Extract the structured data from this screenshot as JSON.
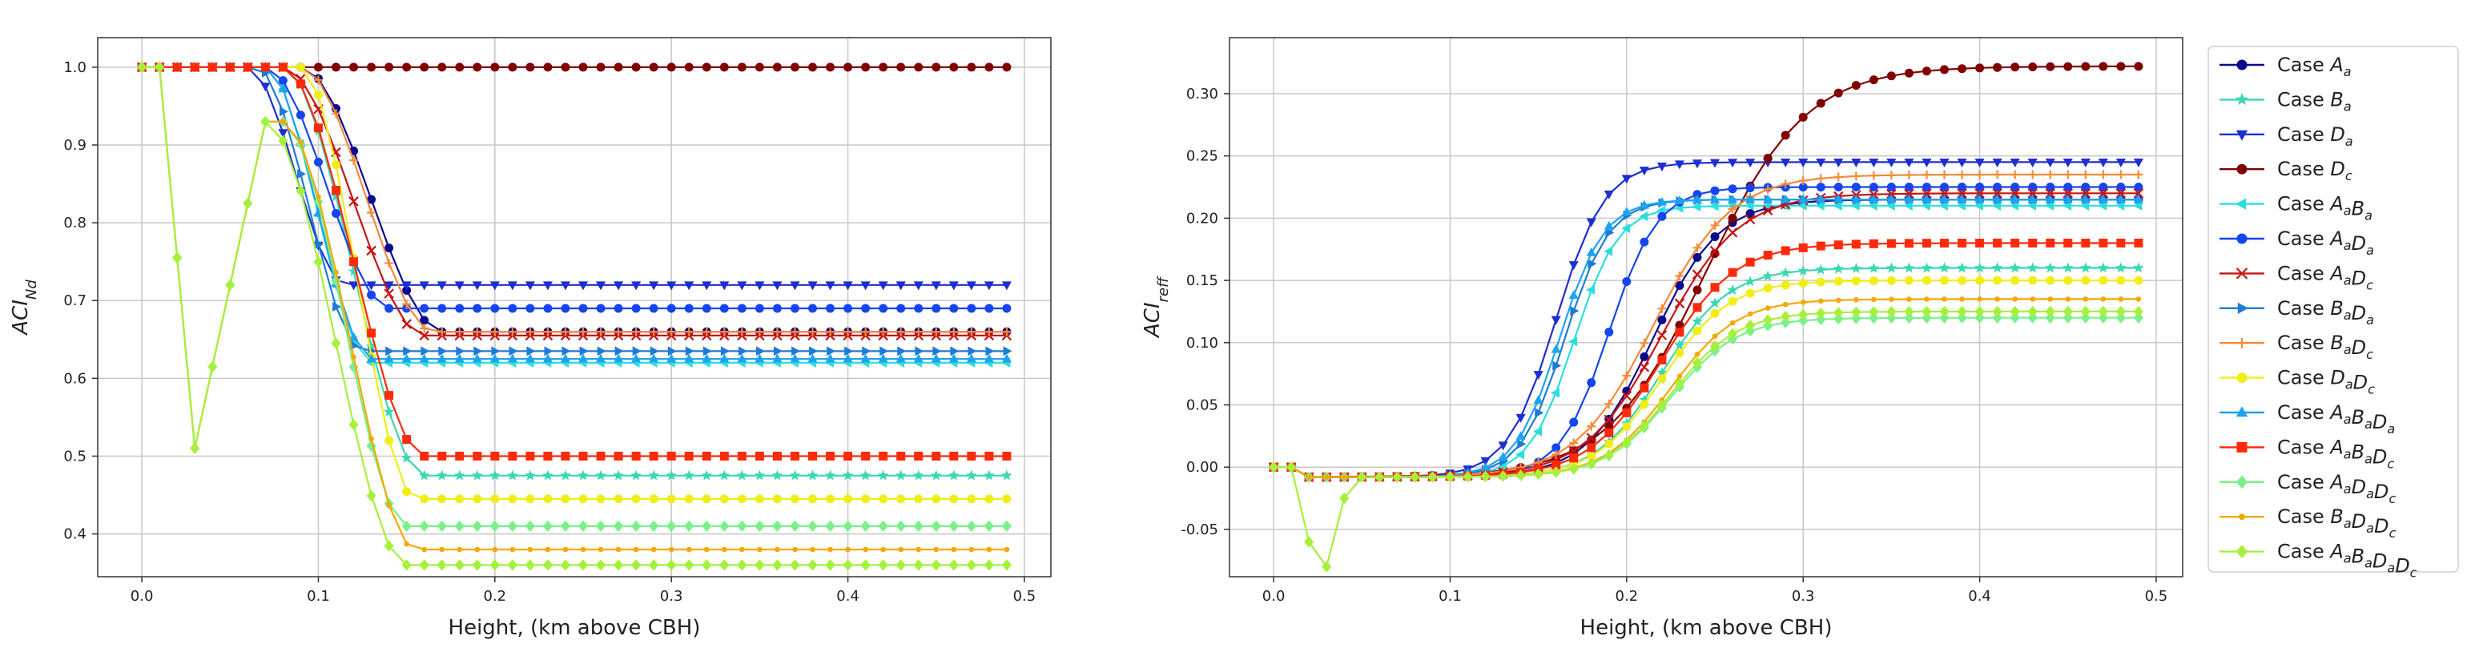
{
  "chart_data": [
    {
      "type": "line",
      "panel": "left",
      "xlabel": "Height, (km above CBH)",
      "ylabel_base": "ACI",
      "ylabel_sub": "Nd",
      "xlim": [
        -0.025,
        0.515
      ],
      "ylim": [
        0.345,
        1.038
      ],
      "xticks": [
        0.0,
        0.1,
        0.2,
        0.3,
        0.4,
        0.5
      ],
      "yticks": [
        0.4,
        0.5,
        0.6,
        0.7,
        0.8,
        0.9,
        1.0
      ],
      "grid": true,
      "series": [
        {
          "id": "Aa",
          "final": 0.66,
          "drop_start": 0.09,
          "drop_end": 0.17,
          "dip": 0.0
        },
        {
          "id": "Ba",
          "final": 0.475,
          "drop_start": 0.08,
          "drop_end": 0.16,
          "dip": 0.0
        },
        {
          "id": "Da",
          "final": 0.72,
          "drop_start": 0.06,
          "drop_end": 0.115,
          "dip": 0.0
        },
        {
          "id": "Dc",
          "final": 1.0,
          "drop_start": 1.0,
          "drop_end": 1.0,
          "dip": 0.0
        },
        {
          "id": "AaBa",
          "final": 0.62,
          "drop_start": 0.07,
          "drop_end": 0.13,
          "dip": 0.0
        },
        {
          "id": "AaDa",
          "final": 0.69,
          "drop_start": 0.07,
          "drop_end": 0.14,
          "dip": 0.0
        },
        {
          "id": "AaDc",
          "final": 0.655,
          "drop_start": 0.08,
          "drop_end": 0.16,
          "dip": 0.06
        },
        {
          "id": "BaDa",
          "final": 0.635,
          "drop_start": 0.065,
          "drop_end": 0.125,
          "dip": 0.0
        },
        {
          "id": "BaDc",
          "final": 0.66,
          "drop_start": 0.09,
          "drop_end": 0.165,
          "dip": 0.0
        },
        {
          "id": "DaDc",
          "final": 0.445,
          "drop_start": 0.09,
          "drop_end": 0.155,
          "dip": 0.0
        },
        {
          "id": "AaBaDa",
          "final": 0.625,
          "drop_start": 0.07,
          "drop_end": 0.13,
          "dip": 0.0
        },
        {
          "id": "AaBaDc",
          "final": 0.5,
          "drop_start": 0.08,
          "drop_end": 0.16,
          "dip": 0.06
        },
        {
          "id": "AaDaDc",
          "final": 0.41,
          "drop_start": 0.08,
          "drop_end": 0.15,
          "dip": 0.34,
          "vshape": true
        },
        {
          "id": "BaDaDc",
          "final": 0.38,
          "drop_start": 0.08,
          "drop_end": 0.155,
          "dip": 0.34,
          "vshape": true
        },
        {
          "id": "AaBaDaDc",
          "final": 0.36,
          "drop_start": 0.07,
          "drop_end": 0.15,
          "dip": 0.34,
          "vshape": true
        }
      ]
    },
    {
      "type": "line",
      "panel": "right",
      "xlabel": "Height, (km above CBH)",
      "ylabel_base": "ACI",
      "ylabel_sub": "reff",
      "xlim": [
        -0.025,
        0.515
      ],
      "ylim": [
        -0.088,
        0.345
      ],
      "xticks": [
        0.0,
        0.1,
        0.2,
        0.3,
        0.4,
        0.5
      ],
      "yticks": [
        -0.05,
        0.0,
        0.05,
        0.1,
        0.15,
        0.2,
        0.25,
        0.3
      ],
      "grid": true,
      "series": [
        {
          "id": "Aa",
          "final": 0.215,
          "mid": 0.215,
          "width": 0.03
        },
        {
          "id": "Ba",
          "final": 0.16,
          "mid": 0.22,
          "width": 0.03
        },
        {
          "id": "Da",
          "final": 0.245,
          "mid": 0.16,
          "width": 0.022
        },
        {
          "id": "Dc",
          "final": 0.322,
          "mid": 0.245,
          "width": 0.045
        },
        {
          "id": "AaBa",
          "final": 0.21,
          "mid": 0.17,
          "width": 0.02
        },
        {
          "id": "AaDa",
          "final": 0.225,
          "mid": 0.19,
          "width": 0.022
        },
        {
          "id": "AaDc",
          "final": 0.22,
          "mid": 0.22,
          "width": 0.035
        },
        {
          "id": "BaDa",
          "final": 0.215,
          "mid": 0.165,
          "width": 0.02
        },
        {
          "id": "BaDc",
          "final": 0.235,
          "mid": 0.215,
          "width": 0.035
        },
        {
          "id": "DaDc",
          "final": 0.15,
          "mid": 0.22,
          "width": 0.03
        },
        {
          "id": "AaBaDa",
          "final": 0.215,
          "mid": 0.162,
          "width": 0.02
        },
        {
          "id": "AaBaDc",
          "final": 0.18,
          "mid": 0.22,
          "width": 0.033
        },
        {
          "id": "AaDaDc",
          "final": 0.12,
          "mid": 0.225,
          "width": 0.03
        },
        {
          "id": "BaDaDc",
          "final": 0.135,
          "mid": 0.225,
          "width": 0.03
        },
        {
          "id": "AaBaDaDc",
          "final": 0.125,
          "mid": 0.225,
          "width": 0.03
        }
      ]
    }
  ],
  "legend": {
    "prefix": "Case",
    "placement": "right",
    "entries": [
      {
        "id": "Aa",
        "parts": [
          [
            "A",
            "a"
          ]
        ],
        "color": "#0a0a8c",
        "marker": "circle"
      },
      {
        "id": "Ba",
        "parts": [
          [
            "B",
            "a"
          ]
        ],
        "color": "#3ad7b4",
        "marker": "star"
      },
      {
        "id": "Da",
        "parts": [
          [
            "D",
            "a"
          ]
        ],
        "color": "#1d2fd0",
        "marker": "triangle-down"
      },
      {
        "id": "Dc",
        "parts": [
          [
            "D",
            "c"
          ]
        ],
        "color": "#800000",
        "marker": "circle"
      },
      {
        "id": "AaBa",
        "parts": [
          [
            "A",
            "a"
          ],
          [
            "B",
            "a"
          ]
        ],
        "color": "#2bdede",
        "marker": "triangle-left"
      },
      {
        "id": "AaDa",
        "parts": [
          [
            "A",
            "a"
          ],
          [
            "D",
            "a"
          ]
        ],
        "color": "#1545ee",
        "marker": "circle"
      },
      {
        "id": "AaDc",
        "parts": [
          [
            "A",
            "a"
          ],
          [
            "D",
            "c"
          ]
        ],
        "color": "#c81414",
        "marker": "x"
      },
      {
        "id": "BaDa",
        "parts": [
          [
            "B",
            "a"
          ],
          [
            "D",
            "a"
          ]
        ],
        "color": "#1e7ad6",
        "marker": "triangle-right"
      },
      {
        "id": "BaDc",
        "parts": [
          [
            "B",
            "a"
          ],
          [
            "D",
            "c"
          ]
        ],
        "color": "#f58a3a",
        "marker": "plus"
      },
      {
        "id": "DaDc",
        "parts": [
          [
            "D",
            "a"
          ],
          [
            "D",
            "c"
          ]
        ],
        "color": "#f0ee18",
        "marker": "circle"
      },
      {
        "id": "AaBaDa",
        "parts": [
          [
            "A",
            "a"
          ],
          [
            "B",
            "a"
          ],
          [
            "D",
            "a"
          ]
        ],
        "color": "#1ea3f0",
        "marker": "triangle-up"
      },
      {
        "id": "AaBaDc",
        "parts": [
          [
            "A",
            "a"
          ],
          [
            "B",
            "a"
          ],
          [
            "D",
            "c"
          ]
        ],
        "color": "#ff2a0a",
        "marker": "square"
      },
      {
        "id": "AaDaDc",
        "parts": [
          [
            "A",
            "a"
          ],
          [
            "D",
            "a"
          ],
          [
            "D",
            "c"
          ]
        ],
        "color": "#7af08a",
        "marker": "diamond"
      },
      {
        "id": "BaDaDc",
        "parts": [
          [
            "B",
            "a"
          ],
          [
            "D",
            "a"
          ],
          [
            "D",
            "c"
          ]
        ],
        "color": "#f5a800",
        "marker": "point"
      },
      {
        "id": "AaBaDaDc",
        "parts": [
          [
            "A",
            "a"
          ],
          [
            "B",
            "a"
          ],
          [
            "D",
            "a"
          ],
          [
            "D",
            "c"
          ]
        ],
        "color": "#a6f03c",
        "marker": "diamond"
      }
    ]
  }
}
